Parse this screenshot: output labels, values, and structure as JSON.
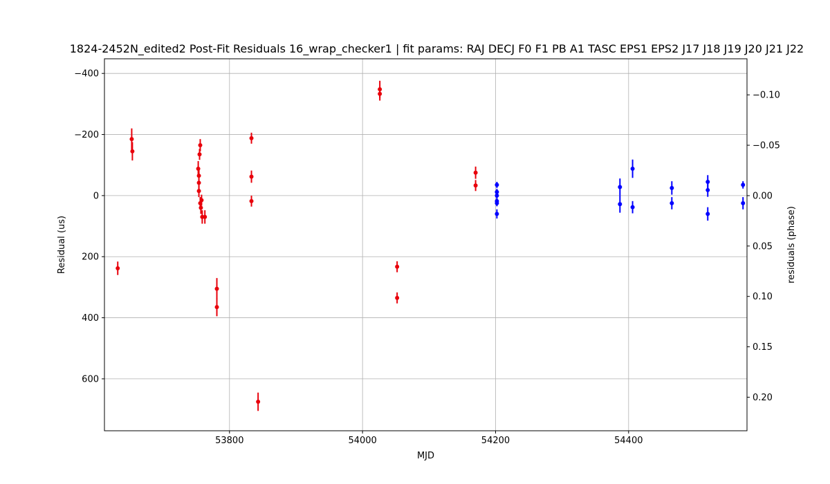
{
  "chart_data": {
    "type": "scatter",
    "title": "1824-2452N_edited2 Post-Fit Residuals 16_wrap_checker1 | fit params: RAJ DECJ F0 F1 PB A1 TASC EPS1 EPS2 J17 J18 J19 J20 J21 J22",
    "xlabel": "MJD",
    "ylabel": "Residual (us)",
    "y2label": "residuals (phase)",
    "xlim": [
      53612,
      54578
    ],
    "ylim": [
      770,
      -448
    ],
    "y2lim": [
      0.2333,
      -0.1358
    ],
    "xticks": [
      53800,
      54000,
      54200,
      54400
    ],
    "yticks": [
      -400,
      -200,
      0,
      200,
      400,
      600
    ],
    "y2ticks": [
      -0.1,
      -0.05,
      0.0,
      0.05,
      0.1,
      0.15,
      0.2
    ],
    "ytick_labels": [
      "−400",
      "−200",
      "0",
      "200",
      "400",
      "600"
    ],
    "y2tick_labels": [
      "−0.10",
      "−0.05",
      "0.00",
      "0.05",
      "0.10",
      "0.15",
      "0.20"
    ],
    "xtick_labels": [
      "53800",
      "54000",
      "54200",
      "54400"
    ],
    "grid": true,
    "series": [
      {
        "color": "#e8000b",
        "points": [
          {
            "x": 53632,
            "y": 238,
            "err": 22
          },
          {
            "x": 53653,
            "y": -185,
            "err": 35
          },
          {
            "x": 53654,
            "y": -145,
            "err": 30
          },
          {
            "x": 53753,
            "y": -88,
            "err": 25
          },
          {
            "x": 53754,
            "y": -65,
            "err": 22
          },
          {
            "x": 53754,
            "y": -42,
            "err": 22
          },
          {
            "x": 53754,
            "y": -15,
            "err": 20
          },
          {
            "x": 53755,
            "y": -135,
            "err": 18
          },
          {
            "x": 53756,
            "y": -165,
            "err": 20
          },
          {
            "x": 53756,
            "y": 25,
            "err": 20
          },
          {
            "x": 53757,
            "y": 40,
            "err": 20
          },
          {
            "x": 53758,
            "y": 15,
            "err": 18
          },
          {
            "x": 53759,
            "y": 70,
            "err": 22
          },
          {
            "x": 53763,
            "y": 70,
            "err": 22
          },
          {
            "x": 53781,
            "y": 305,
            "err": 35
          },
          {
            "x": 53781,
            "y": 365,
            "err": 30
          },
          {
            "x": 53833,
            "y": -188,
            "err": 18
          },
          {
            "x": 53833,
            "y": -62,
            "err": 20
          },
          {
            "x": 53833,
            "y": 18,
            "err": 18
          },
          {
            "x": 53843,
            "y": 675,
            "err": 30
          },
          {
            "x": 54026,
            "y": -348,
            "err": 28
          },
          {
            "x": 54026,
            "y": -333,
            "err": 22
          },
          {
            "x": 54052,
            "y": 233,
            "err": 18
          },
          {
            "x": 54052,
            "y": 335,
            "err": 18
          },
          {
            "x": 54170,
            "y": -75,
            "err": 20
          },
          {
            "x": 54170,
            "y": -33,
            "err": 18
          }
        ]
      },
      {
        "color": "#0000ff",
        "points": [
          {
            "x": 54202,
            "y": -35,
            "err": 10
          },
          {
            "x": 54202,
            "y": -12,
            "err": 10
          },
          {
            "x": 54202,
            "y": 0,
            "err": 10
          },
          {
            "x": 54202,
            "y": 18,
            "err": 10
          },
          {
            "x": 54202,
            "y": 25,
            "err": 10
          },
          {
            "x": 54202,
            "y": 60,
            "err": 15
          },
          {
            "x": 54387,
            "y": -28,
            "err": 28
          },
          {
            "x": 54387,
            "y": 28,
            "err": 28
          },
          {
            "x": 54406,
            "y": -88,
            "err": 30
          },
          {
            "x": 54406,
            "y": 38,
            "err": 20
          },
          {
            "x": 54465,
            "y": -25,
            "err": 22
          },
          {
            "x": 54465,
            "y": 25,
            "err": 20
          },
          {
            "x": 54519,
            "y": -45,
            "err": 22
          },
          {
            "x": 54519,
            "y": -18,
            "err": 22
          },
          {
            "x": 54519,
            "y": 60,
            "err": 22
          },
          {
            "x": 54572,
            "y": -35,
            "err": 12
          },
          {
            "x": 54572,
            "y": 25,
            "err": 20
          }
        ]
      }
    ]
  }
}
